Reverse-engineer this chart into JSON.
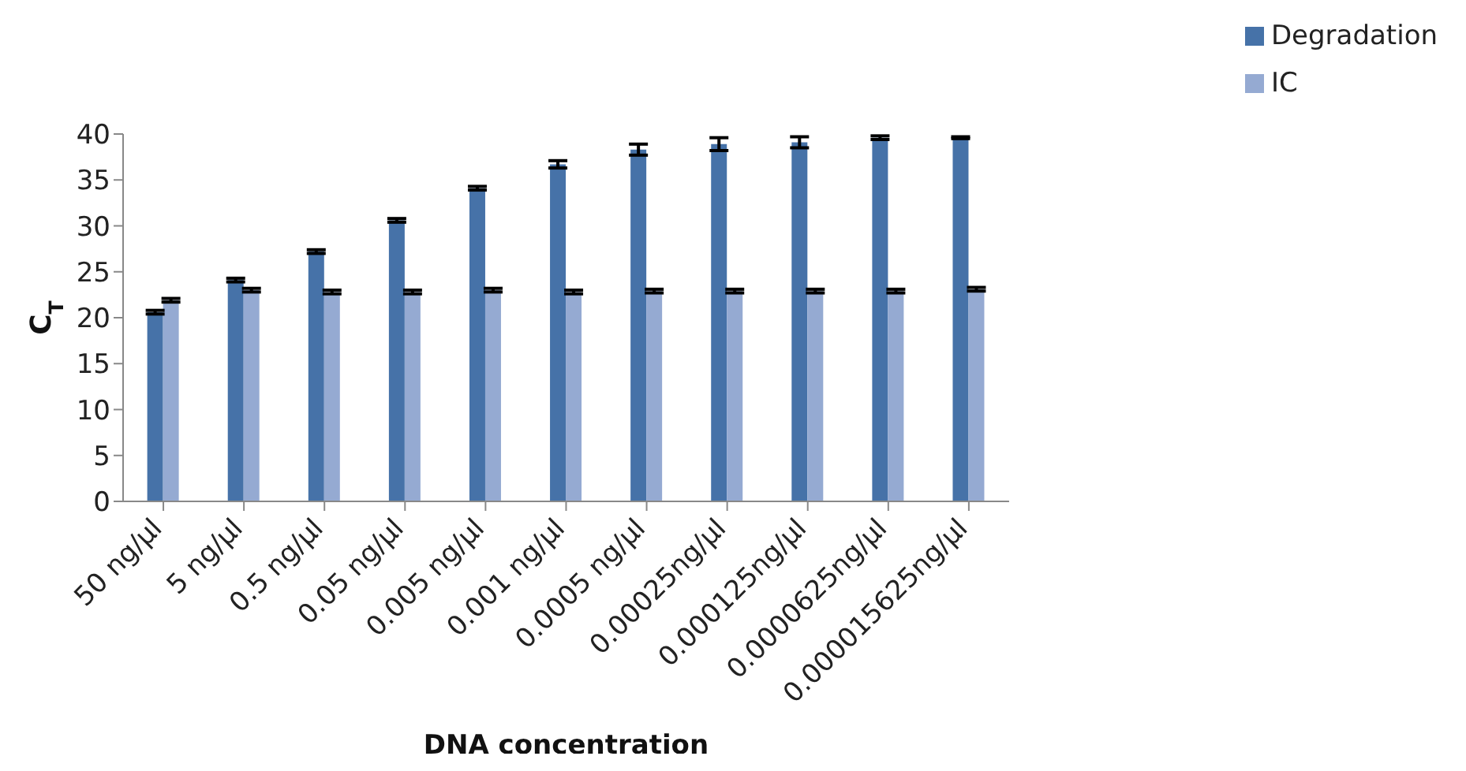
{
  "chart_data": {
    "type": "bar",
    "xlabel": "DNA concentration",
    "ylabel": "C$_{T}$",
    "categories": [
      "50 ng/µl",
      "5 ng/µl",
      "0.5 ng/µl",
      "0.05 ng/µl",
      "0.005 ng/µl",
      "0.001 ng/µl",
      "0.0005 ng/µl",
      "0.00025ng/µl",
      "0.000125ng/µl",
      "0.0000625ng/µl",
      "0.000015625ng/µl"
    ],
    "series": [
      {
        "name": "Degradation",
        "color": "#4672a8",
        "values": [
          20.6,
          24.1,
          27.2,
          30.6,
          34.1,
          36.7,
          38.3,
          38.9,
          39.1,
          39.6,
          39.6
        ],
        "errors": [
          0.2,
          0.2,
          0.2,
          0.2,
          0.2,
          0.4,
          0.6,
          0.7,
          0.6,
          0.2,
          0.1
        ]
      },
      {
        "name": "IC",
        "color": "#95aad2",
        "values": [
          21.9,
          23.0,
          22.8,
          22.8,
          23.0,
          22.8,
          22.9,
          22.9,
          22.9,
          22.9,
          23.1
        ],
        "errors": [
          0.2,
          0.2,
          0.2,
          0.2,
          0.2,
          0.2,
          0.2,
          0.2,
          0.2,
          0.2,
          0.2
        ]
      }
    ],
    "ylim": [
      0,
      40
    ],
    "yticks": [
      0,
      5,
      10,
      15,
      20,
      25,
      30,
      35,
      40
    ],
    "grid": false,
    "legend": "top right"
  }
}
